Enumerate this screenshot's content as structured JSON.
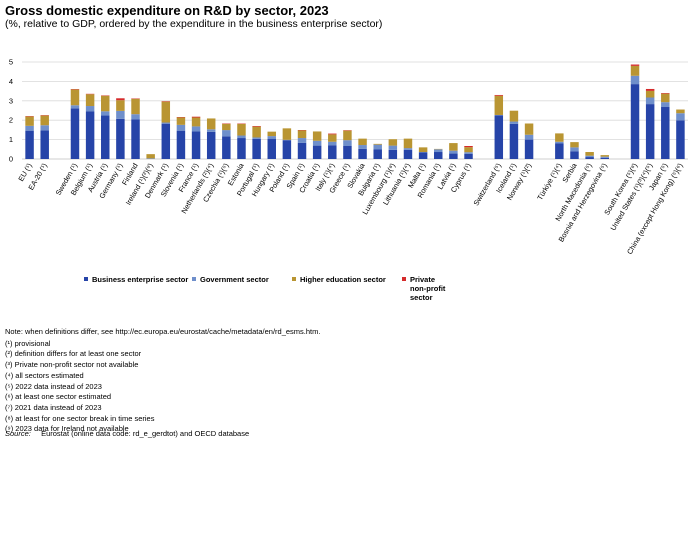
{
  "title": "Gross domestic expenditure on R&D by sector, 2023",
  "subtitle": "(%, relative to GDP, ordered by the expenditure in the business enterprise sector)",
  "colors": {
    "business": "#2644A8",
    "government": "#6F8FCB",
    "higher": "#B99532",
    "private": "#D52B2B",
    "grid": "#d9d9d9"
  },
  "chart_data": {
    "type": "bar",
    "stacked": true,
    "title": "Gross domestic expenditure on R&D by sector, 2023",
    "xlabel": "",
    "ylabel": "",
    "ylim": [
      0,
      5
    ],
    "yticks": [
      0,
      1,
      2,
      3,
      4,
      5
    ],
    "grid": true,
    "legend_position": "bottom",
    "series": [
      {
        "name": "Business enterprise sector",
        "color_key": "business"
      },
      {
        "name": "Government sector",
        "color_key": "government"
      },
      {
        "name": "Higher education sector",
        "color_key": "higher"
      },
      {
        "name": "Private\nnon-profit\nsector",
        "color_key": "private"
      }
    ],
    "groups": [
      {
        "name": "EU",
        "bars": [
          {
            "label": "EU (¹)",
            "values": [
              1.46,
              0.25,
              0.48,
              0.02
            ]
          },
          {
            "label": "EA-20 (¹)",
            "values": [
              1.48,
              0.26,
              0.5,
              0.02
            ]
          }
        ]
      },
      {
        "name": "Member states",
        "bars": [
          {
            "label": "Sweden (¹)",
            "values": [
              2.61,
              0.16,
              0.82,
              0.01
            ]
          },
          {
            "label": "Belgium (¹)",
            "values": [
              2.45,
              0.28,
              0.61,
              0.02
            ]
          },
          {
            "label": "Austria (¹)",
            "values": [
              2.24,
              0.22,
              0.8,
              0.02
            ]
          },
          {
            "label": "Germany (¹)",
            "values": [
              2.07,
              0.41,
              0.55,
              0.1
            ]
          },
          {
            "label": "Finland",
            "values": [
              2.05,
              0.26,
              0.8,
              0.01
            ]
          },
          {
            "label": "Ireland (¹)(²)(⁹)",
            "values": [
              0.0,
              0.03,
              0.22,
              0.0
            ]
          },
          {
            "label": "Denmark (¹)",
            "values": [
              1.82,
              0.06,
              1.08,
              0.02
            ]
          },
          {
            "label": "Slovenia (¹)",
            "values": [
              1.46,
              0.3,
              0.39,
              0.01
            ]
          },
          {
            "label": "France (¹)",
            "values": [
              1.42,
              0.26,
              0.46,
              0.04
            ]
          },
          {
            "label": "Netherlands (²)(⁴)",
            "values": [
              1.4,
              0.13,
              0.56,
              0.0
            ]
          },
          {
            "label": "Czechia (¹)(⁵)",
            "values": [
              1.17,
              0.32,
              0.33,
              0.01
            ]
          },
          {
            "label": "Estonia",
            "values": [
              1.08,
              0.13,
              0.6,
              0.02
            ]
          },
          {
            "label": "Portugal (¹)",
            "values": [
              1.04,
              0.07,
              0.56,
              0.03
            ]
          },
          {
            "label": "Hungary (¹)",
            "values": [
              1.03,
              0.15,
              0.23,
              0.0
            ]
          },
          {
            "label": "Poland (¹)",
            "values": [
              0.97,
              0.02,
              0.59,
              0.0
            ]
          },
          {
            "label": "Spain (¹)",
            "values": [
              0.83,
              0.25,
              0.4,
              0.01
            ]
          },
          {
            "label": "Croatia (¹)",
            "values": [
              0.69,
              0.25,
              0.48,
              0.0
            ]
          },
          {
            "label": "Italy (¹)(⁴)",
            "values": [
              0.71,
              0.18,
              0.38,
              0.04
            ]
          },
          {
            "label": "Greece (¹)",
            "values": [
              0.67,
              0.3,
              0.5,
              0.01
            ]
          },
          {
            "label": "Slovakia",
            "values": [
              0.52,
              0.2,
              0.33,
              0.0
            ]
          },
          {
            "label": "Bulgaria (¹)",
            "values": [
              0.49,
              0.25,
              0.04,
              0.0
            ]
          },
          {
            "label": "Luxembourg (¹)(⁸)",
            "values": [
              0.47,
              0.22,
              0.33,
              0.0
            ]
          },
          {
            "label": "Lithuania (¹)(⁴)",
            "values": [
              0.47,
              0.09,
              0.49,
              0.0
            ]
          },
          {
            "label": "Malta (¹)",
            "values": [
              0.34,
              0.02,
              0.24,
              0.0
            ]
          },
          {
            "label": "Romania (¹)",
            "values": [
              0.36,
              0.14,
              0.02,
              0.0
            ]
          },
          {
            "label": "Latvia (¹)",
            "values": [
              0.28,
              0.15,
              0.39,
              0.0
            ]
          },
          {
            "label": "Cyprus (¹)",
            "values": [
              0.26,
              0.09,
              0.26,
              0.06
            ]
          }
        ]
      },
      {
        "name": "EFTA",
        "bars": [
          {
            "label": "Switzerland (⁵)",
            "values": [
              2.25,
              0.02,
              0.99,
              0.04
            ]
          },
          {
            "label": "Iceland (¹)",
            "values": [
              1.81,
              0.12,
              0.56,
              0.0
            ]
          },
          {
            "label": "Norway (¹)(²)",
            "values": [
              1.0,
              0.25,
              0.58,
              0.0
            ]
          }
        ]
      },
      {
        "name": "Candidates",
        "bars": [
          {
            "label": "Türkiye (¹)(⁴)",
            "values": [
              0.8,
              0.09,
              0.43,
              0.0
            ]
          },
          {
            "label": "Serbia",
            "values": [
              0.4,
              0.2,
              0.27,
              0.0
            ]
          },
          {
            "label": "North Macedonia (⁵)",
            "values": [
              0.1,
              0.07,
              0.19,
              0.0
            ]
          },
          {
            "label": "Bosnia and Herzegovina (⁵)",
            "values": [
              0.06,
              0.06,
              0.08,
              0.0
            ]
          }
        ]
      },
      {
        "name": "Others",
        "bars": [
          {
            "label": "South Korea (⁵)(⁸)",
            "values": [
              3.86,
              0.43,
              0.51,
              0.07
            ]
          },
          {
            "label": "United States (¹)(³)(⁴)(⁵)",
            "values": [
              2.83,
              0.34,
              0.34,
              0.1
            ]
          },
          {
            "label": "Japan (⁵)",
            "values": [
              2.68,
              0.25,
              0.44,
              0.03
            ]
          },
          {
            "label": "China (except Hong Kong) (⁵)(⁶)",
            "values": [
              1.99,
              0.37,
              0.19,
              0.0
            ]
          }
        ]
      }
    ]
  },
  "legend": {
    "business": "Business enterprise sector",
    "government": "Government sector",
    "higher": "Higher education sector",
    "private_l1": "Private",
    "private_l2": "non-profit",
    "private_l3": "sector"
  },
  "notes": {
    "definitions": "Note: when definitions differ, see http://ec.europa.eu/eurostat/cache/metadata/en/rd_esms.htm.",
    "n1": "(¹) provisional",
    "n2": "(²) definition differs for at least one sector",
    "n3": "(³) Private non-profit sector not available",
    "n4": "(⁴) all sectors estimated",
    "n5": "(⁵) 2022 data instead of 2023",
    "n6": "(⁶) at least one sector estimated",
    "n7": "(⁷) 2021 data instead of 2023",
    "n8": "(⁸) at least for one sector break in time series",
    "n9": "(⁹) 2023 data for Ireland not available"
  },
  "source": {
    "label": "Source:",
    "text": "Eurostat (online data code: rd_e_gerdtot) and OECD database"
  }
}
